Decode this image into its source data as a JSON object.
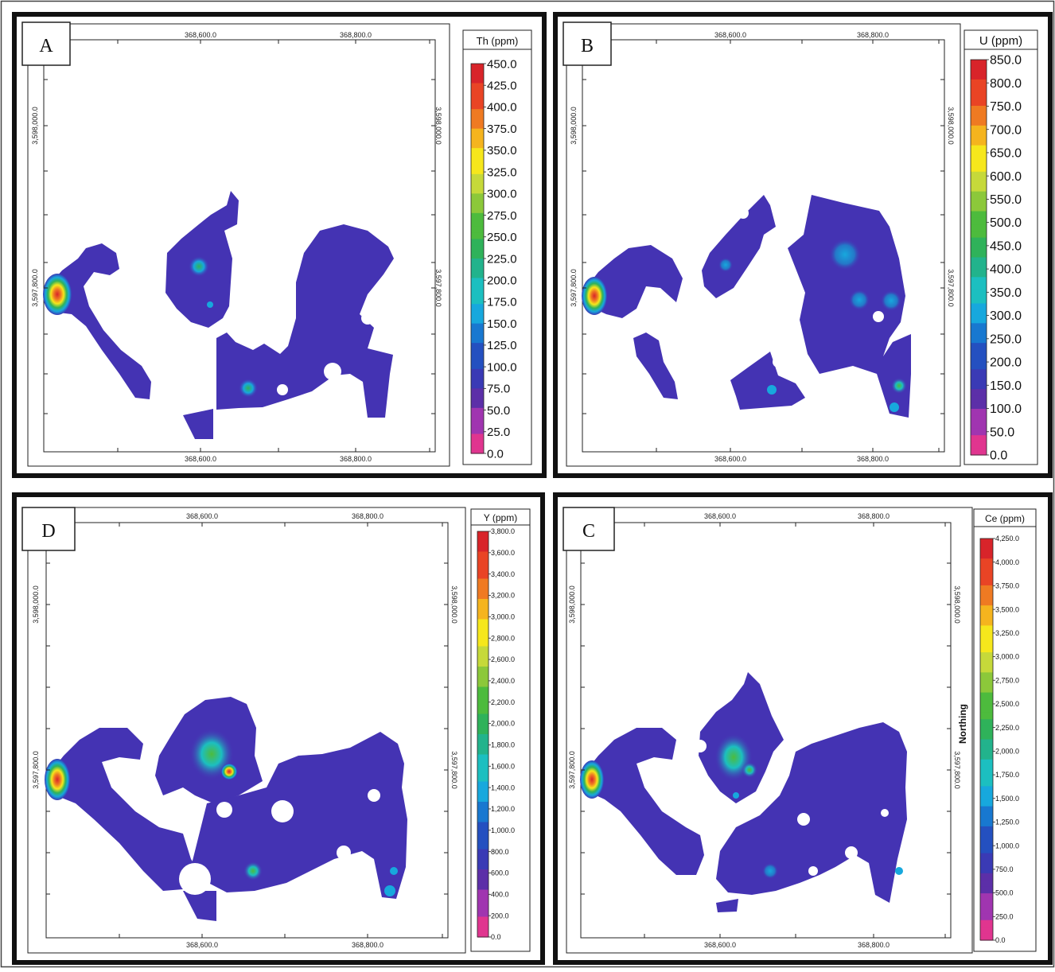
{
  "panels": [
    {
      "letter": "A",
      "legend_title": "Th (ppm)",
      "legend_values": [
        "450.0",
        "425.0",
        "400.0",
        "375.0",
        "350.0",
        "325.0",
        "300.0",
        "275.0",
        "250.0",
        "225.0",
        "200.0",
        "175.0",
        "150.0",
        "125.0",
        "100.0",
        "75.0",
        "50.0",
        "25.0",
        "0.0"
      ],
      "easting_ticks": [
        "368,600.0",
        "368,800.0"
      ],
      "northing_ticks": [
        "3,598,000.0",
        "3,597,800.0"
      ],
      "side_label": ""
    },
    {
      "letter": "B",
      "legend_title": "U (ppm)",
      "legend_values": [
        "850.0",
        "800.0",
        "750.0",
        "700.0",
        "650.0",
        "600.0",
        "550.0",
        "500.0",
        "450.0",
        "400.0",
        "350.0",
        "300.0",
        "250.0",
        "200.0",
        "150.0",
        "100.0",
        "50.0",
        "0.0"
      ],
      "easting_ticks": [
        "368,600.0",
        "368,800.0"
      ],
      "northing_ticks": [
        "3,598,000.0",
        "3,597,800.0"
      ],
      "side_label": ""
    },
    {
      "letter": "D",
      "legend_title": "Y (ppm)",
      "legend_values": [
        "3,800.0",
        "3,600.0",
        "3,400.0",
        "3,200.0",
        "3,000.0",
        "2,800.0",
        "2,600.0",
        "2,400.0",
        "2,200.0",
        "2,000.0",
        "1,800.0",
        "1,600.0",
        "1,400.0",
        "1,200.0",
        "1,000.0",
        "800.0",
        "600.0",
        "400.0",
        "200.0",
        "0.0"
      ],
      "easting_ticks": [
        "368,600.0",
        "368,800.0"
      ],
      "northing_ticks": [
        "3,598,000.0",
        "3,597,800.0"
      ],
      "side_label": ""
    },
    {
      "letter": "C",
      "legend_title": "Ce (ppm)",
      "legend_values": [
        "4,250.0",
        "4,000.0",
        "3,750.0",
        "3,500.0",
        "3,250.0",
        "3,000.0",
        "2,750.0",
        "2,500.0",
        "2,250.0",
        "2,000.0",
        "1,750.0",
        "1,500.0",
        "1,250.0",
        "1,000.0",
        "750.0",
        "500.0",
        "250.0",
        "0.0"
      ],
      "easting_ticks": [
        "368,600.0",
        "368,800.0"
      ],
      "northing_ticks": [
        "3,598,000.0",
        "3,597,800.0"
      ],
      "side_label": "Northing"
    }
  ],
  "colors": {
    "frame": "#111111",
    "background": "#ffffff",
    "body": "#4433b3",
    "ramp": [
      "#e0358f",
      "#a035b0",
      "#5c2fa8",
      "#3a3ab5",
      "#2450c0",
      "#1878d0",
      "#17a8dd",
      "#1cbfc0",
      "#22b38c",
      "#2fb25a",
      "#4dbb3d",
      "#8cc83a",
      "#c6d93a",
      "#f6e71c",
      "#f5b41e",
      "#ef7a22",
      "#e94425",
      "#d8242a"
    ]
  }
}
